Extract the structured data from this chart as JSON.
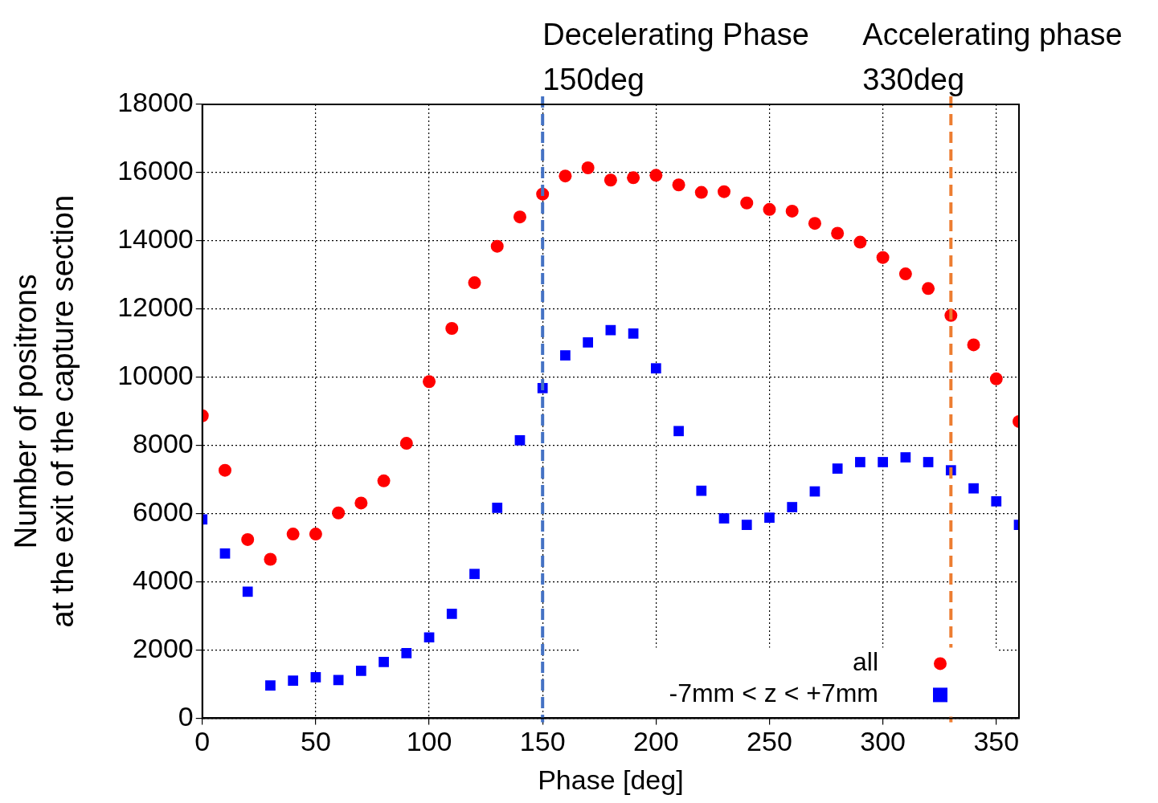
{
  "chart_data": {
    "type": "scatter",
    "xlabel": "Phase [deg]",
    "ylabel": "Number of positrons\nat the exit of the capture section",
    "x": [
      0,
      10,
      20,
      30,
      40,
      50,
      60,
      70,
      80,
      90,
      100,
      110,
      120,
      130,
      140,
      150,
      160,
      170,
      180,
      190,
      200,
      210,
      220,
      230,
      240,
      250,
      260,
      270,
      280,
      290,
      300,
      310,
      320,
      330,
      340,
      350,
      360
    ],
    "series": [
      {
        "name": "all",
        "color": "#ff0000",
        "marker": "circle",
        "values": [
          8870,
          7270,
          5240,
          4660,
          5400,
          5400,
          6020,
          6310,
          6960,
          8060,
          9870,
          11430,
          12770,
          13840,
          14700,
          15370,
          15900,
          16140,
          15780,
          15850,
          15920,
          15640,
          15420,
          15440,
          15110,
          14920,
          14870,
          14510,
          14220,
          13960,
          13510,
          13030,
          12600,
          11810,
          10950,
          9950,
          8700
        ]
      },
      {
        "name": "-7mm < z < +7mm",
        "color": "#0000ff",
        "marker": "square",
        "values": [
          5830,
          4830,
          3710,
          960,
          1100,
          1200,
          1120,
          1390,
          1650,
          1910,
          2370,
          3060,
          4230,
          6170,
          8150,
          9680,
          10640,
          11020,
          11380,
          11280,
          10260,
          8420,
          6670,
          5860,
          5670,
          5880,
          6190,
          6650,
          7320,
          7510,
          7510,
          7650,
          7510,
          7270,
          6740,
          6360,
          5670
        ]
      }
    ],
    "xlim": [
      0,
      360
    ],
    "xticks": [
      0,
      50,
      100,
      150,
      200,
      250,
      300,
      350
    ],
    "ylim": [
      0,
      18000
    ],
    "yticks": [
      0,
      2000,
      4000,
      6000,
      8000,
      10000,
      12000,
      14000,
      16000,
      18000
    ],
    "grid": true,
    "legend": "bottom right",
    "ref_lines": [
      {
        "axis": "x",
        "value": 150,
        "label": "Decelerating Phase\n150deg",
        "color": "#4472c4",
        "line_style": "dashed"
      },
      {
        "axis": "x",
        "value": 330,
        "label": "Accelerating phase\n330deg",
        "color": "#ed7d31",
        "line_style": "dashed"
      }
    ]
  }
}
